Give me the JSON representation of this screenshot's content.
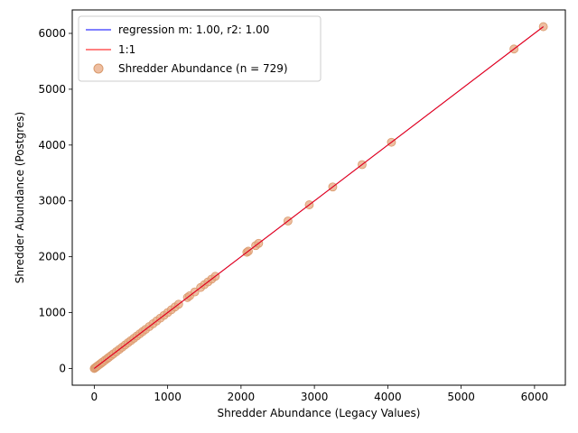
{
  "chart_data": {
    "type": "scatter",
    "title": "",
    "xlabel": "Shredder Abundance (Legacy Values)",
    "ylabel": "Shredder Abundance (Postgres)",
    "xlim": [
      -300,
      6420
    ],
    "ylim": [
      -300,
      6420
    ],
    "xticks": [
      0,
      1000,
      2000,
      3000,
      4000,
      5000,
      6000
    ],
    "yticks": [
      0,
      1000,
      2000,
      3000,
      4000,
      5000,
      6000
    ],
    "grid": false,
    "legend_position": "top-left",
    "colors": {
      "regression": "#0000ff",
      "one_to_one": "#ff0000",
      "points_fill": "#e8a882",
      "points_edge": "#d99a6c"
    },
    "series": [
      {
        "name": "regression m: 1.00, r2: 1.00",
        "kind": "line",
        "x": [
          0,
          6120
        ],
        "y": [
          0,
          6120
        ]
      },
      {
        "name": "1:1",
        "kind": "line",
        "x": [
          0,
          6120
        ],
        "y": [
          0,
          6120
        ]
      },
      {
        "name": "Shredder Abundance (n = 729)",
        "kind": "scatter",
        "x": [
          0,
          10,
          20,
          30,
          40,
          60,
          80,
          100,
          120,
          150,
          180,
          200,
          230,
          260,
          300,
          340,
          380,
          420,
          460,
          500,
          540,
          580,
          620,
          660,
          700,
          750,
          800,
          850,
          900,
          950,
          1000,
          1050,
          1100,
          1150,
          1270,
          1300,
          1370,
          1450,
          1500,
          1550,
          1600,
          1650,
          2080,
          2100,
          2200,
          2240,
          2640,
          2930,
          3250,
          3650,
          4050,
          5720,
          6120
        ],
        "y": [
          0,
          10,
          20,
          30,
          40,
          60,
          80,
          100,
          120,
          150,
          180,
          200,
          230,
          260,
          300,
          340,
          380,
          420,
          460,
          500,
          540,
          580,
          620,
          660,
          700,
          750,
          800,
          850,
          900,
          950,
          1000,
          1050,
          1100,
          1150,
          1270,
          1300,
          1370,
          1450,
          1500,
          1550,
          1600,
          1650,
          2080,
          2100,
          2200,
          2240,
          2640,
          2930,
          3250,
          3650,
          4050,
          5720,
          6120
        ]
      }
    ]
  }
}
